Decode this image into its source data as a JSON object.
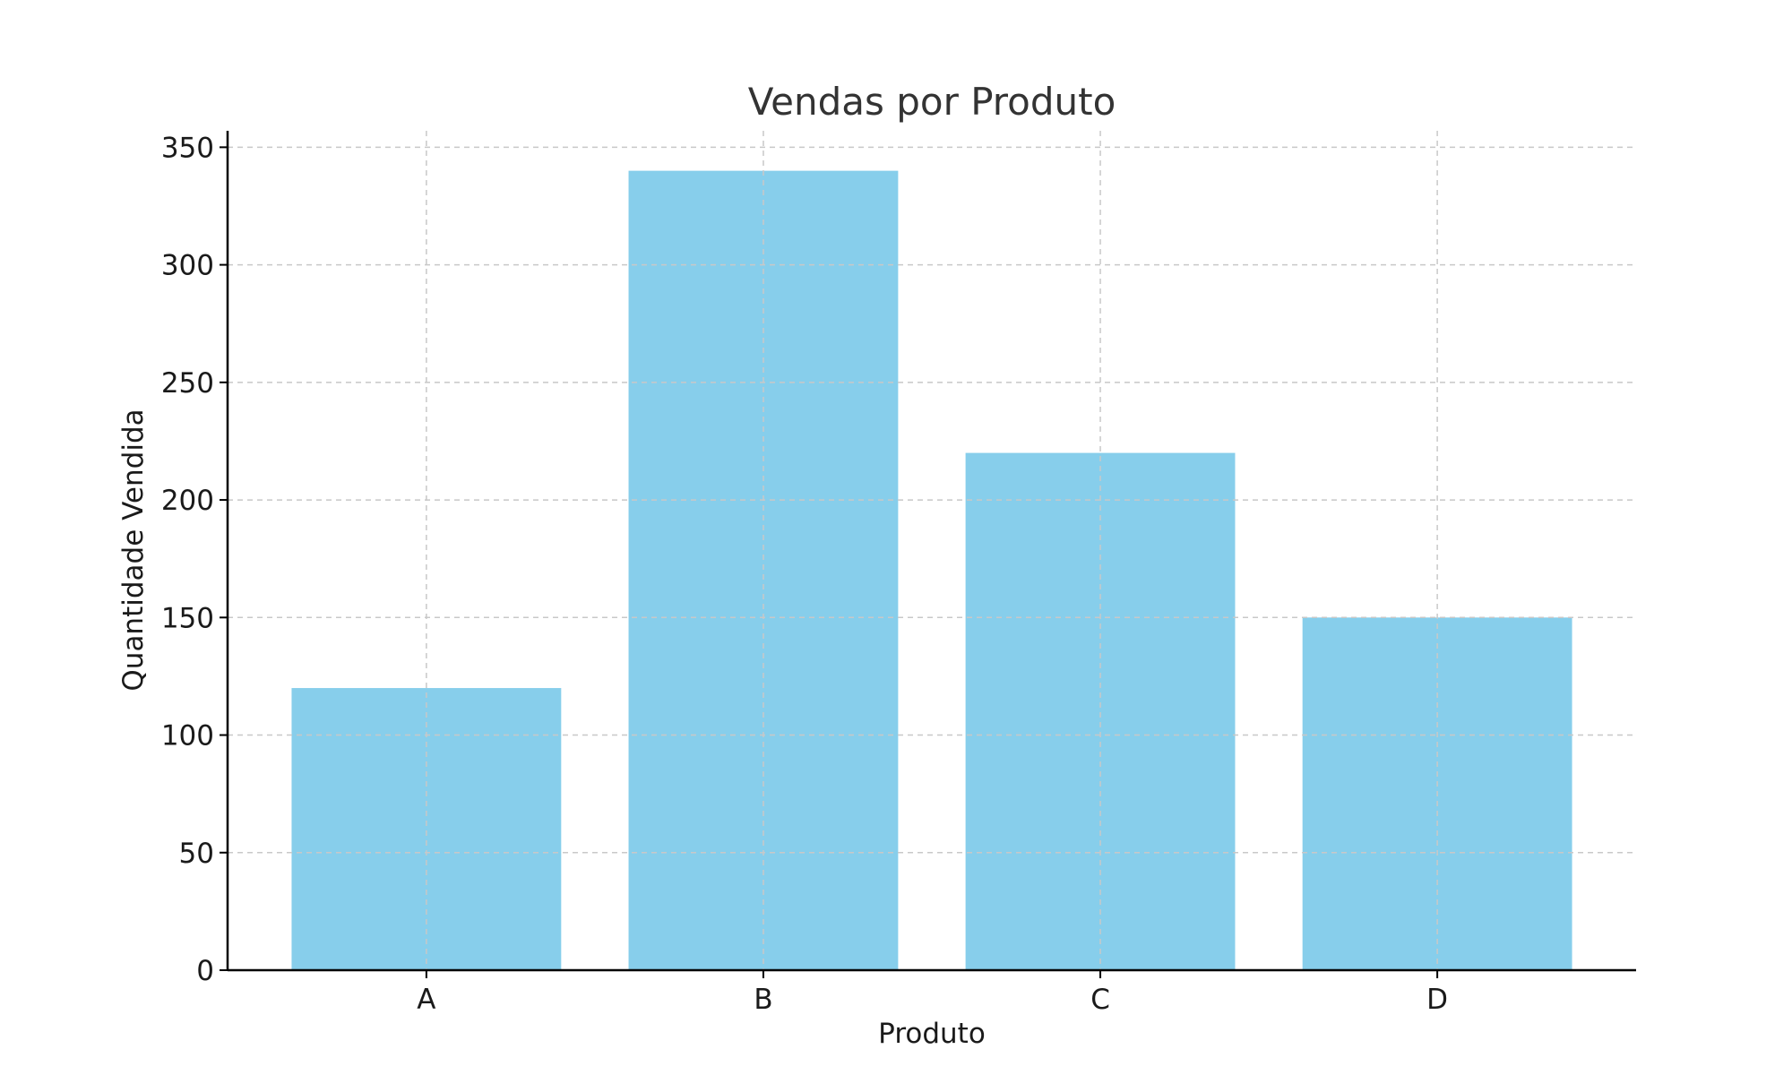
{
  "chart_data": {
    "type": "bar",
    "title": "Vendas por Produto",
    "xlabel": "Produto",
    "ylabel": "Quantidade Vendida",
    "categories": [
      "A",
      "B",
      "C",
      "D"
    ],
    "values": [
      120,
      340,
      220,
      150
    ],
    "ylim": [
      0,
      357
    ],
    "yticks": [
      0,
      50,
      100,
      150,
      200,
      250,
      300,
      350
    ],
    "grid": true,
    "bar_color": "#87ceeb",
    "legend": "none"
  }
}
